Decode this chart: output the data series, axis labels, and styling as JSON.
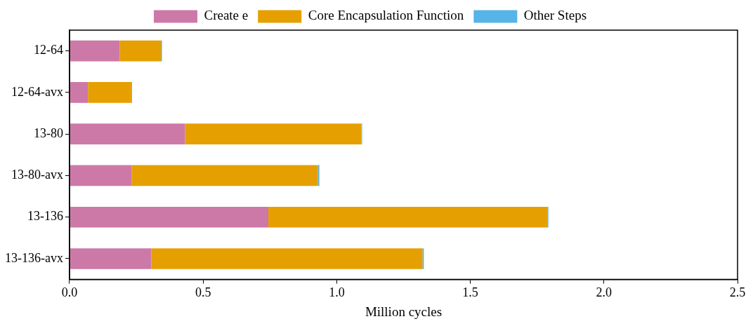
{
  "chart_data": {
    "type": "bar",
    "orientation": "horizontal",
    "stacked": true,
    "xlabel": "Million cycles",
    "categories": [
      "12-64",
      "12-64-avx",
      "13-80",
      "13-80-avx",
      "13-136",
      "13-136-avx"
    ],
    "series": [
      {
        "name": "Create e",
        "color": "#cc79a7",
        "values": [
          0.188,
          0.069,
          0.432,
          0.232,
          0.744,
          0.306
        ]
      },
      {
        "name": "Core Encapsulation Function",
        "color": "#e69f00",
        "values": [
          0.154,
          0.162,
          0.66,
          0.698,
          1.044,
          1.015
        ]
      },
      {
        "name": "Other Steps",
        "color": "#56b4e9",
        "values": [
          0.004,
          0.003,
          0.003,
          0.005,
          0.004,
          0.005
        ]
      }
    ],
    "xlim": [
      0,
      2.5
    ],
    "xticks": [
      {
        "value": 0,
        "label": "0.0"
      },
      0.5,
      {
        "value": 1,
        "label": "1.0"
      },
      1.5,
      {
        "value": 2,
        "label": "2.0"
      },
      2.5
    ],
    "grid": false,
    "legend": "top"
  }
}
